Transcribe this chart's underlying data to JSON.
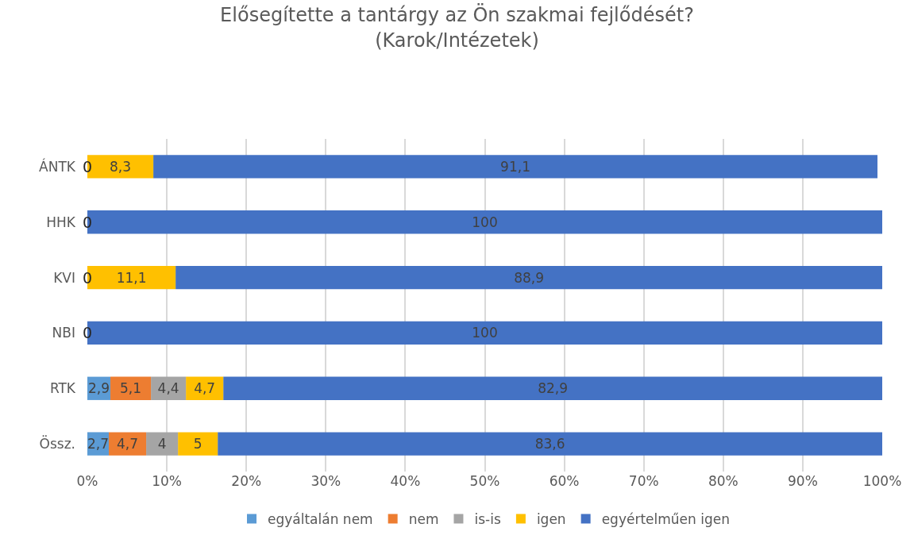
{
  "chart_data": {
    "type": "bar",
    "orientation": "horizontal",
    "stacked": true,
    "title": "Elősegítette a tantárgy az Ön szakmai fejlődését?\n(Karok/Intézetek)",
    "categories": [
      "ÁNTK",
      "HHK",
      "KVI",
      "NBI",
      "RTK",
      "Össz."
    ],
    "series": [
      {
        "name": "egyáltalán nem",
        "color": "#5b9bd5",
        "values": [
          0,
          0,
          0,
          0,
          2.9,
          2.7
        ],
        "value_labels": [
          null,
          null,
          null,
          null,
          "2,9",
          "2,7"
        ]
      },
      {
        "name": "nem",
        "color": "#ed7d31",
        "values": [
          0,
          0,
          0,
          0,
          5.1,
          4.7
        ],
        "value_labels": [
          null,
          null,
          null,
          null,
          "5,1",
          "4,7"
        ]
      },
      {
        "name": "is-is",
        "color": "#a5a5a5",
        "values": [
          0,
          0,
          0,
          0,
          4.4,
          4
        ],
        "value_labels": [
          null,
          null,
          null,
          null,
          "4,4",
          "4"
        ]
      },
      {
        "name": "igen",
        "color": "#ffc000",
        "values": [
          8.3,
          0,
          11.1,
          0,
          4.7,
          5
        ],
        "value_labels": [
          "8,3",
          null,
          "11,1",
          null,
          "4,7",
          "5"
        ]
      },
      {
        "name": "egyértelműen igen",
        "color": "#4472c4",
        "values": [
          91.1,
          100,
          88.9,
          100,
          82.9,
          83.6
        ],
        "value_labels": [
          "91,1",
          "100",
          "88,9",
          "100",
          "82,9",
          "83,6"
        ]
      }
    ],
    "xlim": [
      0,
      100
    ],
    "xticks": [
      {
        "value": 0,
        "label": "0%"
      },
      {
        "value": 10,
        "label": "10%"
      },
      {
        "value": 20,
        "label": "20%"
      },
      {
        "value": 30,
        "label": "30%"
      },
      {
        "value": 40,
        "label": "40%"
      },
      {
        "value": 50,
        "label": "50%"
      },
      {
        "value": 60,
        "label": "60%"
      },
      {
        "value": 70,
        "label": "70%"
      },
      {
        "value": 80,
        "label": "80%"
      },
      {
        "value": 90,
        "label": "90%"
      },
      {
        "value": 100,
        "label": "100%"
      }
    ],
    "grid": "x",
    "legend": "bottom",
    "annotations": [
      {
        "text": "0",
        "y": "ÁNTK"
      },
      {
        "text": "0",
        "y": "HHK"
      },
      {
        "text": "0",
        "y": "KVI"
      },
      {
        "text": "0",
        "y": "NBI"
      }
    ]
  }
}
